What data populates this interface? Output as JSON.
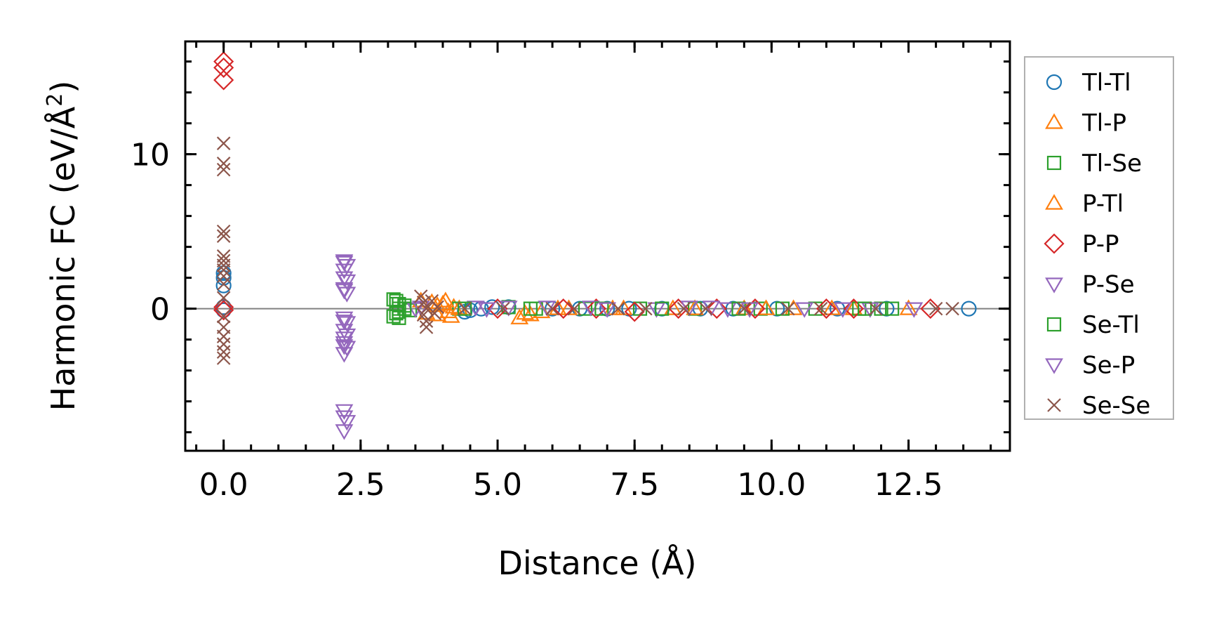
{
  "chart_data": {
    "type": "scatter",
    "xlabel": "Distance (Å)",
    "ylabel_main": "Harmonic FC (eV/Å",
    "ylabel_sup": "2",
    "ylabel_close": ")",
    "xlim": [
      -0.7,
      14.35
    ],
    "ylim": [
      -9.2,
      17.3
    ],
    "xticks": [
      0.0,
      2.5,
      5.0,
      7.5,
      10.0,
      12.5
    ],
    "xtick_labels": [
      "0.0",
      "2.5",
      "5.0",
      "7.5",
      "10.0",
      "12.5"
    ],
    "yticks": [
      0,
      10
    ],
    "ytick_labels": [
      "0",
      "10"
    ],
    "x_minor_step": 0.5,
    "y_minor_step": 2,
    "zero_line": true,
    "legend_position": "outside-right",
    "series": [
      {
        "name": "Tl-Tl",
        "marker": "circle",
        "color": "#1f77b4",
        "points": [
          [
            0,
            1.5
          ],
          [
            0,
            2.0
          ],
          [
            0,
            2.3
          ],
          [
            0,
            0.1
          ],
          [
            0,
            -0.1
          ],
          [
            4.4,
            -0.2
          ],
          [
            4.5,
            -0.1
          ],
          [
            4.7,
            0.0
          ],
          [
            4.9,
            0.1
          ],
          [
            5.2,
            0.1
          ],
          [
            6.0,
            0.0
          ],
          [
            6.5,
            0.0
          ],
          [
            7.0,
            0.0
          ],
          [
            7.4,
            0.0
          ],
          [
            8.0,
            0.0
          ],
          [
            8.7,
            0.0
          ],
          [
            9.3,
            0.0
          ],
          [
            10.1,
            0.0
          ],
          [
            11.2,
            0.0
          ],
          [
            12.1,
            0.0
          ],
          [
            13.6,
            0.0
          ]
        ]
      },
      {
        "name": "Tl-P",
        "marker": "triangle-up",
        "color": "#ff7f0e",
        "points": [
          [
            3.6,
            0.5
          ],
          [
            3.8,
            0.4
          ],
          [
            3.9,
            -0.4
          ],
          [
            4.0,
            0.3
          ],
          [
            4.1,
            -0.2
          ],
          [
            4.2,
            0.1
          ],
          [
            5.4,
            -0.6
          ],
          [
            5.6,
            -0.4
          ],
          [
            5.8,
            -0.2
          ],
          [
            6.3,
            0.0
          ],
          [
            7.1,
            0.0
          ],
          [
            8.2,
            0.0
          ],
          [
            9.5,
            0.0
          ],
          [
            10.4,
            0.0
          ],
          [
            11.5,
            0.0
          ],
          [
            12.5,
            0.0
          ]
        ]
      },
      {
        "name": "Tl-Se",
        "marker": "square",
        "color": "#2ca02c",
        "points": [
          [
            3.1,
            0.6
          ],
          [
            3.15,
            0.3
          ],
          [
            3.2,
            0.0
          ],
          [
            3.15,
            -0.3
          ],
          [
            3.2,
            -0.6
          ],
          [
            3.3,
            0.2
          ],
          [
            3.4,
            -0.1
          ],
          [
            4.3,
            0.0
          ],
          [
            5.2,
            0.1
          ],
          [
            5.7,
            0.0
          ],
          [
            6.6,
            0.0
          ],
          [
            7.6,
            0.0
          ],
          [
            8.6,
            0.0
          ],
          [
            9.8,
            0.0
          ],
          [
            10.8,
            0.0
          ],
          [
            11.6,
            0.0
          ],
          [
            12.0,
            0.0
          ]
        ]
      },
      {
        "name": "P-Tl",
        "marker": "triangle-up",
        "color": "#ff7f0e",
        "points": [
          [
            3.7,
            -0.3
          ],
          [
            3.9,
            0.2
          ],
          [
            4.05,
            0.5
          ],
          [
            4.15,
            -0.5
          ],
          [
            4.3,
            0.0
          ],
          [
            5.5,
            -0.3
          ],
          [
            6.1,
            0.0
          ],
          [
            7.3,
            0.0
          ],
          [
            8.6,
            0.0
          ],
          [
            9.9,
            0.0
          ],
          [
            11.1,
            0.0
          ]
        ]
      },
      {
        "name": "P-P",
        "marker": "diamond",
        "color": "#d62728",
        "points": [
          [
            0,
            16.0
          ],
          [
            0,
            15.6
          ],
          [
            0,
            14.8
          ],
          [
            0,
            0.1
          ],
          [
            0,
            -0.1
          ],
          [
            5.0,
            0.0
          ],
          [
            6.2,
            0.0
          ],
          [
            6.8,
            0.0
          ],
          [
            7.5,
            -0.2
          ],
          [
            8.3,
            0.0
          ],
          [
            9.0,
            0.0
          ],
          [
            9.7,
            0.0
          ],
          [
            11.0,
            0.0
          ],
          [
            11.5,
            0.0
          ],
          [
            12.9,
            0.0
          ]
        ]
      },
      {
        "name": "P-Se",
        "marker": "triangle-down",
        "color": "#9467bd",
        "points": [
          [
            2.2,
            3.1
          ],
          [
            2.25,
            2.8
          ],
          [
            2.2,
            2.5
          ],
          [
            2.25,
            1.8
          ],
          [
            2.2,
            1.3
          ],
          [
            2.25,
            1.0
          ],
          [
            2.2,
            -0.6
          ],
          [
            2.25,
            -0.9
          ],
          [
            2.2,
            -1.4
          ],
          [
            2.25,
            -1.7
          ],
          [
            2.2,
            -2.2
          ],
          [
            2.25,
            -2.5
          ],
          [
            2.2,
            -2.9
          ],
          [
            2.2,
            -6.6
          ],
          [
            2.25,
            -7.3
          ],
          [
            2.2,
            -7.9
          ],
          [
            3.5,
            0.0
          ],
          [
            4.6,
            0.1
          ],
          [
            5.2,
            0.1
          ],
          [
            6.7,
            0.1
          ],
          [
            7.9,
            0.0
          ],
          [
            8.9,
            0.1
          ],
          [
            9.2,
            0.0
          ],
          [
            10.6,
            0.0
          ],
          [
            11.8,
            0.0
          ],
          [
            12.6,
            0.0
          ]
        ]
      },
      {
        "name": "Se-Tl",
        "marker": "square",
        "color": "#2ca02c",
        "points": [
          [
            3.1,
            -0.5
          ],
          [
            3.15,
            0.5
          ],
          [
            3.2,
            -0.2
          ],
          [
            3.2,
            0.3
          ],
          [
            3.3,
            0.0
          ],
          [
            4.4,
            0.0
          ],
          [
            5.6,
            0.0
          ],
          [
            6.9,
            0.0
          ],
          [
            8.0,
            0.0
          ],
          [
            9.4,
            0.0
          ],
          [
            10.2,
            0.0
          ],
          [
            11.7,
            0.0
          ],
          [
            12.2,
            0.0
          ]
        ]
      },
      {
        "name": "Se-P",
        "marker": "triangle-down",
        "color": "#9467bd",
        "points": [
          [
            2.2,
            3.0
          ],
          [
            2.2,
            2.0
          ],
          [
            2.2,
            1.2
          ],
          [
            2.2,
            -0.8
          ],
          [
            2.2,
            -1.9
          ],
          [
            2.2,
            -2.4
          ],
          [
            2.2,
            -7.0
          ],
          [
            3.6,
            0.1
          ],
          [
            4.8,
            0.0
          ],
          [
            5.9,
            0.1
          ],
          [
            7.0,
            0.0
          ],
          [
            8.5,
            0.1
          ],
          [
            9.6,
            0.0
          ],
          [
            11.3,
            0.0
          ]
        ]
      },
      {
        "name": "Se-Se",
        "marker": "x",
        "color": "#8c564b",
        "points": [
          [
            0,
            10.7
          ],
          [
            0,
            9.4
          ],
          [
            0,
            9.0
          ],
          [
            0,
            5.0
          ],
          [
            0,
            4.7
          ],
          [
            0,
            3.4
          ],
          [
            0,
            3.1
          ],
          [
            0,
            2.8
          ],
          [
            0,
            2.5
          ],
          [
            0,
            2.1
          ],
          [
            0,
            1.6
          ],
          [
            0,
            0.7
          ],
          [
            0,
            -0.5
          ],
          [
            0,
            -1.2
          ],
          [
            0,
            -1.8
          ],
          [
            0,
            -2.3
          ],
          [
            0,
            -2.8
          ],
          [
            0,
            -3.2
          ],
          [
            3.6,
            0.8
          ],
          [
            3.65,
            0.4
          ],
          [
            3.7,
            0.0
          ],
          [
            3.65,
            -0.4
          ],
          [
            3.7,
            -0.8
          ],
          [
            3.7,
            -1.2
          ],
          [
            3.8,
            0.5
          ],
          [
            3.9,
            0.1
          ],
          [
            3.85,
            -0.3
          ],
          [
            4.4,
            0.0
          ],
          [
            5.1,
            0.0
          ],
          [
            6.0,
            0.0
          ],
          [
            6.4,
            0.0
          ],
          [
            7.2,
            0.0
          ],
          [
            7.7,
            0.0
          ],
          [
            8.4,
            0.0
          ],
          [
            8.8,
            0.0
          ],
          [
            9.5,
            0.0
          ],
          [
            10.3,
            0.0
          ],
          [
            10.9,
            0.0
          ],
          [
            11.9,
            0.0
          ],
          [
            13.0,
            0.0
          ],
          [
            13.3,
            0.0
          ]
        ]
      }
    ]
  }
}
